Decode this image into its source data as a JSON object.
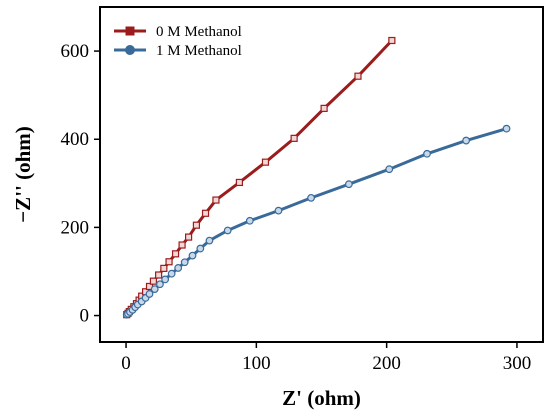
{
  "chart_data": {
    "type": "line",
    "xlabel": "Z' (ohm)",
    "ylabel": "−Z'' (ohm)",
    "xlim": [
      -20,
      320
    ],
    "ylim": [
      -60,
      700
    ],
    "x_ticks": [
      0,
      100,
      200,
      300
    ],
    "y_ticks": [
      0,
      200,
      400,
      600
    ],
    "grid": false,
    "legend_position": "top-left",
    "series": [
      {
        "name": "0 M Methanol",
        "color": "#9b1c1c",
        "marker": "square",
        "points": [
          [
            0.5,
            2
          ],
          [
            1.5,
            5
          ],
          [
            2.5,
            9
          ],
          [
            4,
            14
          ],
          [
            6,
            20
          ],
          [
            8,
            27
          ],
          [
            10,
            35
          ],
          [
            12,
            44
          ],
          [
            15,
            54
          ],
          [
            18,
            66
          ],
          [
            21,
            78
          ],
          [
            25,
            92
          ],
          [
            29,
            107
          ],
          [
            33,
            122
          ],
          [
            38,
            140
          ],
          [
            43,
            160
          ],
          [
            48,
            178
          ],
          [
            54,
            205
          ],
          [
            61,
            232
          ],
          [
            69,
            262
          ],
          [
            87,
            302
          ],
          [
            107,
            348
          ],
          [
            129,
            402
          ],
          [
            152,
            470
          ],
          [
            178,
            543
          ],
          [
            204,
            624
          ]
        ]
      },
      {
        "name": "1 M Methanol",
        "color": "#3a6a99",
        "marker": "circle",
        "points": [
          [
            0.5,
            2
          ],
          [
            1.5,
            4
          ],
          [
            3,
            8
          ],
          [
            5,
            13
          ],
          [
            7,
            19
          ],
          [
            9,
            25
          ],
          [
            12,
            32
          ],
          [
            15,
            40
          ],
          [
            18,
            49
          ],
          [
            22,
            60
          ],
          [
            26,
            71
          ],
          [
            30,
            82
          ],
          [
            35,
            95
          ],
          [
            40,
            108
          ],
          [
            45,
            121
          ],
          [
            51,
            136
          ],
          [
            57,
            152
          ],
          [
            64,
            170
          ],
          [
            78,
            193
          ],
          [
            95,
            215
          ],
          [
            117,
            238
          ],
          [
            142,
            267
          ],
          [
            171,
            298
          ],
          [
            202,
            332
          ],
          [
            231,
            367
          ],
          [
            261,
            397
          ],
          [
            292,
            424
          ]
        ]
      }
    ]
  }
}
